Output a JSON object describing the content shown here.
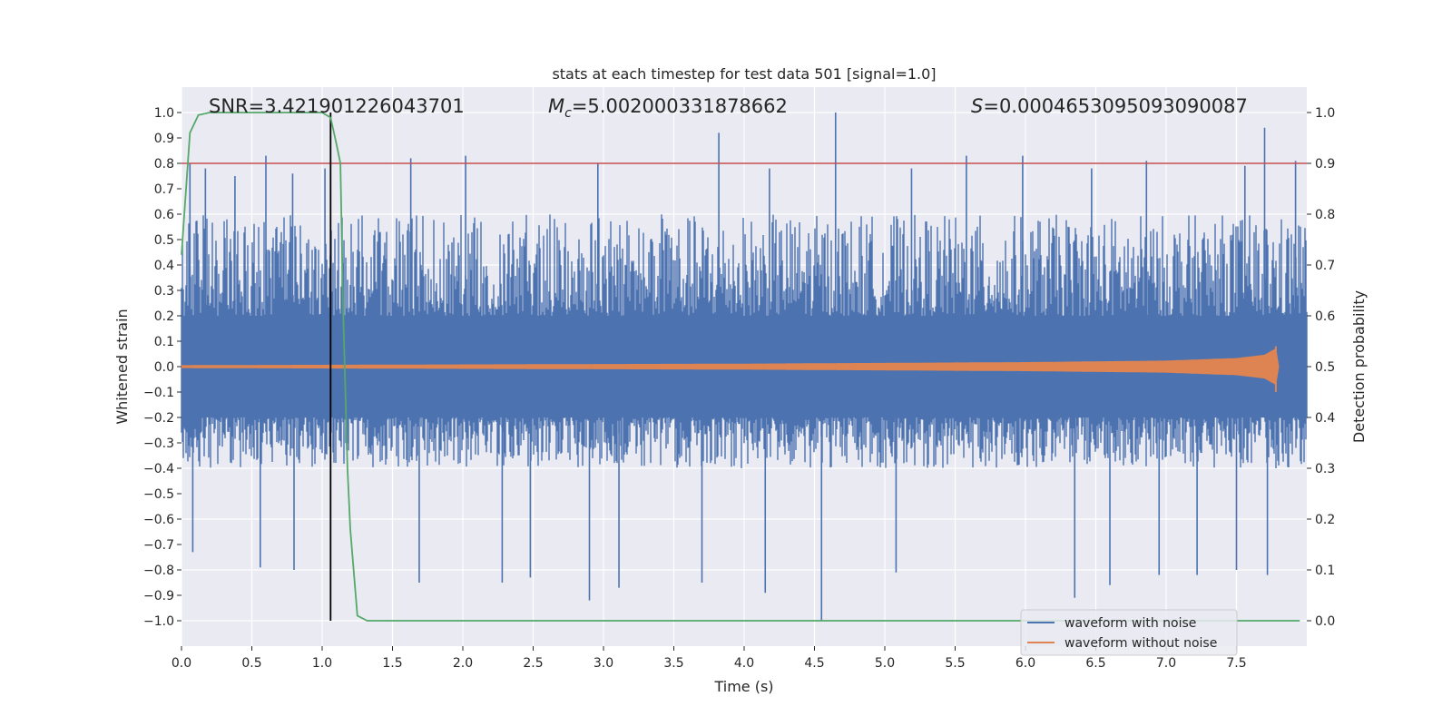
{
  "chart_data": {
    "type": "line",
    "title": "stats at each timestep for test data 501 [signal=1.0]",
    "xlabel": "Time (s)",
    "ylabel": "Whitened strain",
    "y2label": "Detection probability",
    "xlim": [
      0.0,
      8.0
    ],
    "ylim": [
      -1.1,
      1.1
    ],
    "y2lim": [
      -0.05,
      1.05
    ],
    "xticks": [
      "0.0",
      "0.5",
      "1.0",
      "1.5",
      "2.0",
      "2.5",
      "3.0",
      "3.5",
      "4.0",
      "4.5",
      "5.0",
      "5.5",
      "6.0",
      "6.5",
      "7.0",
      "7.5"
    ],
    "yticks": [
      "1.0",
      "0.9",
      "0.8",
      "0.7",
      "0.6",
      "0.5",
      "0.4",
      "0.3",
      "0.2",
      "0.1",
      "0.0",
      "−0.1",
      "−0.2",
      "−0.3",
      "−0.4",
      "−0.5",
      "−0.6",
      "−0.7",
      "−0.8",
      "−0.9",
      "−1.0"
    ],
    "y2ticks": [
      "1.0",
      "0.9",
      "0.8",
      "0.7",
      "0.6",
      "0.5",
      "0.4",
      "0.3",
      "0.2",
      "0.1",
      "0.0"
    ],
    "grid": true,
    "legend_position": "lower-right",
    "annotations": {
      "snr": "SNR=3.421901226043701",
      "mc_symbol": "M",
      "mc_sub": "c",
      "mc_value": "=5.002000331878662",
      "s_symbol": "S",
      "s_value": "=0.0004653095093090087"
    },
    "threshold": {
      "value": 0.9,
      "axis": "y2",
      "color": "#c44e52"
    },
    "vertical_line": {
      "x": 1.06,
      "y_from": -1.0,
      "y_to": 1.0,
      "color": "#000000"
    },
    "series": [
      {
        "name": "waveform with noise",
        "axis": "y",
        "color": "#4c72b0",
        "x_range": [
          0.0,
          8.0
        ],
        "envelope": {
          "typical_low": -0.4,
          "typical_high": 0.6,
          "dense_low": -0.2,
          "dense_high": 0.2
        },
        "spikes": [
          {
            "x": 0.06,
            "y": 0.8
          },
          {
            "x": 0.17,
            "y": 0.78
          },
          {
            "x": 0.38,
            "y": 0.75
          },
          {
            "x": 0.6,
            "y": 0.83
          },
          {
            "x": 0.79,
            "y": 0.76
          },
          {
            "x": 1.02,
            "y": 0.78
          },
          {
            "x": 1.63,
            "y": 0.82
          },
          {
            "x": 2.02,
            "y": 0.83
          },
          {
            "x": 2.96,
            "y": 0.8
          },
          {
            "x": 3.82,
            "y": 0.92
          },
          {
            "x": 4.18,
            "y": 0.78
          },
          {
            "x": 4.65,
            "y": 1.0
          },
          {
            "x": 5.19,
            "y": 0.78
          },
          {
            "x": 5.58,
            "y": 0.83
          },
          {
            "x": 5.98,
            "y": 0.83
          },
          {
            "x": 6.47,
            "y": 0.78
          },
          {
            "x": 6.86,
            "y": 0.81
          },
          {
            "x": 7.56,
            "y": 0.79
          },
          {
            "x": 7.7,
            "y": 0.94
          },
          {
            "x": 7.92,
            "y": 0.81
          },
          {
            "x": 0.08,
            "y": -0.73
          },
          {
            "x": 0.56,
            "y": -0.79
          },
          {
            "x": 0.8,
            "y": -0.8
          },
          {
            "x": 1.69,
            "y": -0.85
          },
          {
            "x": 2.28,
            "y": -0.85
          },
          {
            "x": 2.48,
            "y": -0.83
          },
          {
            "x": 2.9,
            "y": -0.92
          },
          {
            "x": 3.11,
            "y": -0.87
          },
          {
            "x": 3.7,
            "y": -0.85
          },
          {
            "x": 4.15,
            "y": -0.89
          },
          {
            "x": 4.55,
            "y": -1.0
          },
          {
            "x": 5.08,
            "y": -0.81
          },
          {
            "x": 6.35,
            "y": -0.91
          },
          {
            "x": 6.6,
            "y": -0.86
          },
          {
            "x": 6.95,
            "y": -0.82
          },
          {
            "x": 7.22,
            "y": -0.82
          },
          {
            "x": 7.5,
            "y": -0.8
          },
          {
            "x": 7.72,
            "y": -0.82
          }
        ]
      },
      {
        "name": "waveform without noise",
        "axis": "y",
        "color": "#dd8452",
        "x_range": [
          0.0,
          7.8
        ],
        "amplitude_envelope": [
          [
            0.0,
            0.004
          ],
          [
            4.0,
            0.01
          ],
          [
            6.0,
            0.016
          ],
          [
            7.0,
            0.022
          ],
          [
            7.5,
            0.032
          ],
          [
            7.7,
            0.045
          ],
          [
            7.78,
            0.07
          ],
          [
            7.8,
            0.0
          ]
        ]
      },
      {
        "name": "detection probability",
        "axis": "y2",
        "color": "#55a868",
        "x": [
          0.0,
          0.02,
          0.06,
          0.12,
          0.2,
          0.4,
          0.6,
          0.8,
          1.0,
          1.06,
          1.1,
          1.13,
          1.15,
          1.18,
          1.2,
          1.25,
          1.32,
          1.5,
          2.0,
          3.0,
          4.0,
          5.0,
          6.0,
          7.0,
          7.95
        ],
        "values": [
          0.72,
          0.8,
          0.96,
          0.995,
          1.0,
          1.0,
          1.0,
          1.0,
          1.0,
          0.99,
          0.94,
          0.9,
          0.6,
          0.3,
          0.18,
          0.01,
          0.0,
          0.0,
          0.0,
          0.0,
          0.0,
          0.0,
          0.0,
          0.0,
          0.0
        ]
      }
    ]
  }
}
